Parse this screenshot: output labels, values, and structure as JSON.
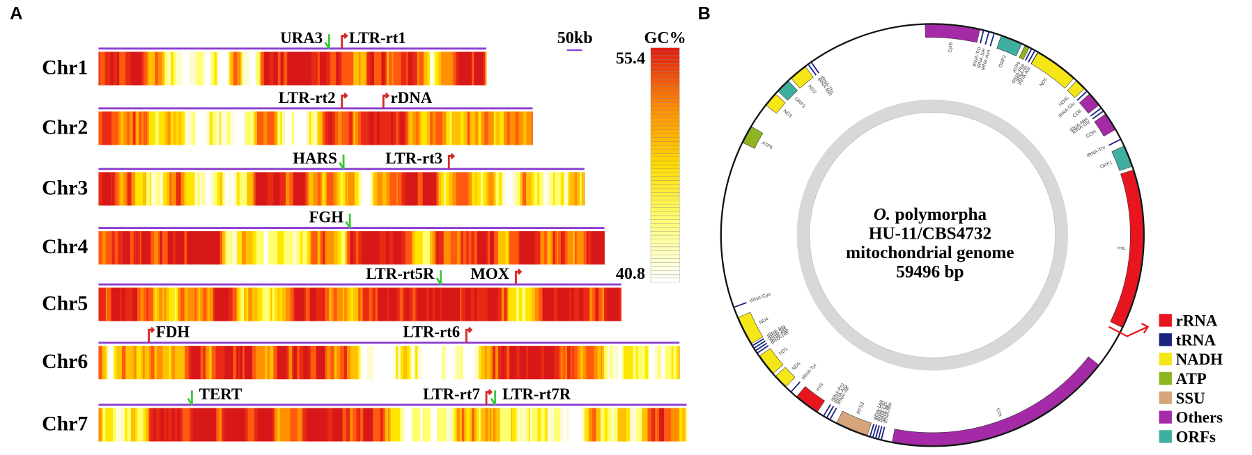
{
  "panel_a": {
    "label": "A",
    "scale_bar": "50kb",
    "colorbar": {
      "title": "GC%",
      "max": 55.4,
      "min": 40.8
    },
    "chromosomes": [
      {
        "name": "Chr1",
        "markers": [
          {
            "label": "URA3",
            "color": "#3cc83c"
          },
          {
            "label": "LTR-rt1",
            "color": "#d42a2a"
          }
        ]
      },
      {
        "name": "Chr2",
        "markers": [
          {
            "label": "LTR-rt2",
            "color": "#d42a2a"
          },
          {
            "label": "rDNA",
            "color": "#d42a2a"
          }
        ]
      },
      {
        "name": "Chr3",
        "markers": [
          {
            "label": "HARS",
            "color": "#3cc83c"
          },
          {
            "label": "LTR-rt3",
            "color": "#d42a2a"
          }
        ]
      },
      {
        "name": "Chr4",
        "markers": [
          {
            "label": "FGH",
            "color": "#3cc83c"
          }
        ]
      },
      {
        "name": "Chr5",
        "markers": [
          {
            "label": "LTR-rt5R",
            "color": "#3cc83c"
          },
          {
            "label": "MOX",
            "color": "#d42a2a"
          }
        ]
      },
      {
        "name": "Chr6",
        "markers": [
          {
            "label": "FDH",
            "color": "#d42a2a"
          },
          {
            "label": "LTR-rt6",
            "color": "#d42a2a"
          }
        ]
      },
      {
        "name": "Chr7",
        "markers": [
          {
            "label": "TERT",
            "color": "#3cc83c"
          },
          {
            "label": "LTR-rt7",
            "color": "#d42a2a"
          },
          {
            "label": "LTR-rt7R",
            "color": "#3cc83c"
          }
        ]
      }
    ]
  },
  "panel_b": {
    "label": "B",
    "center": {
      "genus": "O.",
      "species": "polymorpha",
      "strain": "HU-11/CBS4732",
      "description": "mitochondrial genome",
      "size": "59496 bp"
    },
    "legend": [
      {
        "label": "rRNA",
        "color": "#e8151f",
        "genes": [
          "rrnL",
          "rrnS"
        ]
      },
      {
        "label": "tRNA",
        "color": "#1a237e",
        "genes": [
          "tRNA-Trp",
          "tRNA-Ser",
          "tRNA-Asn",
          "tRNA-Phe",
          "tRNA-Ile",
          "tRNA-Ala",
          "tRNA-Glu",
          "tRNA-Met",
          "tRNA-Gly",
          "tRNA-Thr",
          "tRNA-Met",
          "tRNA-Ile",
          "tRNA-Lys",
          "tRNA-Gln",
          "tRNA-Leu",
          "tRNA-Val",
          "tRNA-Arg",
          "tRNA-Pro",
          "tRNA-Tyr",
          "tRNA-His",
          "tRNA-Asp",
          "tRNA-Ser",
          "tRNA-Arg",
          "tRNA-Cys",
          "tRNA-Met",
          "tRNA-Thr"
        ]
      },
      {
        "label": "NADH",
        "color": "#f5e617",
        "genes": [
          "ND5",
          "ND4L",
          "ND4",
          "ND1",
          "ND6",
          "ND2",
          "ND3"
        ]
      },
      {
        "label": "ATP",
        "color": "#8db51f",
        "genes": [
          "ATP9",
          "ATP6"
        ]
      },
      {
        "label": "SSU",
        "color": "#d7a57b",
        "genes": [
          "RPS3"
        ]
      },
      {
        "label": "Others",
        "color": "#a42aa7",
        "genes": [
          "CytB",
          "COII",
          "COIII",
          "COI"
        ]
      },
      {
        "label": "ORFs",
        "color": "#3fb0a0",
        "genes": [
          "ORF2",
          "ORF1",
          "ORF3"
        ]
      }
    ]
  }
}
